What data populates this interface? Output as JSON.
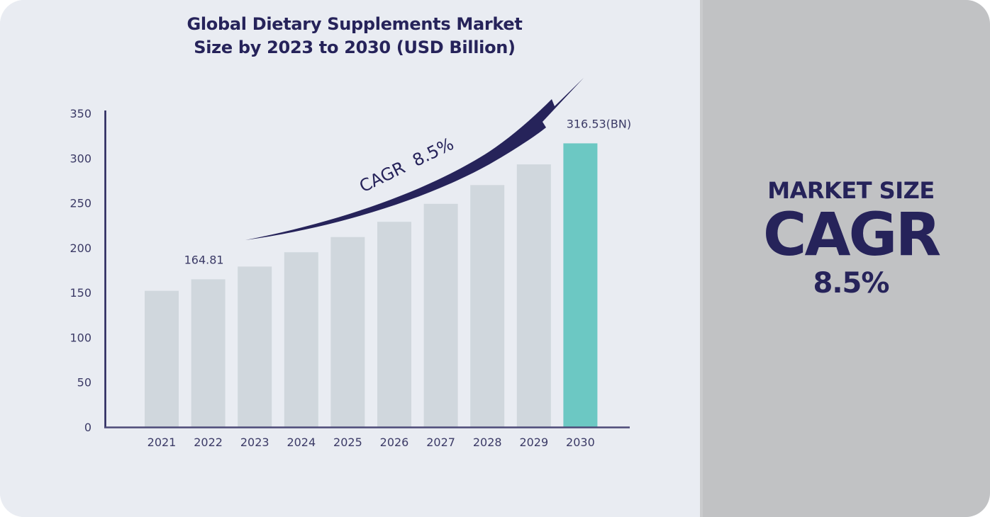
{
  "title_lines": [
    "Global Dietary Supplements Market",
    "Size by 2023 to 2030 (USD Billion)"
  ],
  "side_panel": {
    "line1": "MARKET SIZE",
    "line2": "CAGR",
    "line3": "8.5%"
  },
  "colors": {
    "background": "#e9ecf2",
    "side_panel": "#c1c2c4",
    "bar": "#d0d7dd",
    "highlight_bar": "#6cc8c3",
    "dark": "#26235a"
  },
  "icons": {
    "arrow": "curved-up-arrow-icon"
  },
  "chart_data": {
    "type": "bar",
    "title": "Global Dietary Supplements Market Size by 2023 to 2030 (USD Billion)",
    "xlabel": "",
    "ylabel": "",
    "categories": [
      "2021",
      "2022",
      "2023",
      "2024",
      "2025",
      "2026",
      "2027",
      "2028",
      "2029",
      "2030"
    ],
    "values": [
      152,
      164.81,
      179,
      195,
      212,
      229,
      249,
      270,
      293,
      316.53
    ],
    "ylim": [
      0,
      350
    ],
    "yticks": [
      "0",
      "50",
      "100",
      "150",
      "200",
      "250",
      "300",
      "350"
    ],
    "grid": false,
    "highlight_index": 9,
    "data_labels": [
      {
        "index": 1,
        "text": "164.81"
      },
      {
        "index": 9,
        "text": "316.53(BN)"
      }
    ],
    "annotation": "CAGR  8.5%"
  }
}
